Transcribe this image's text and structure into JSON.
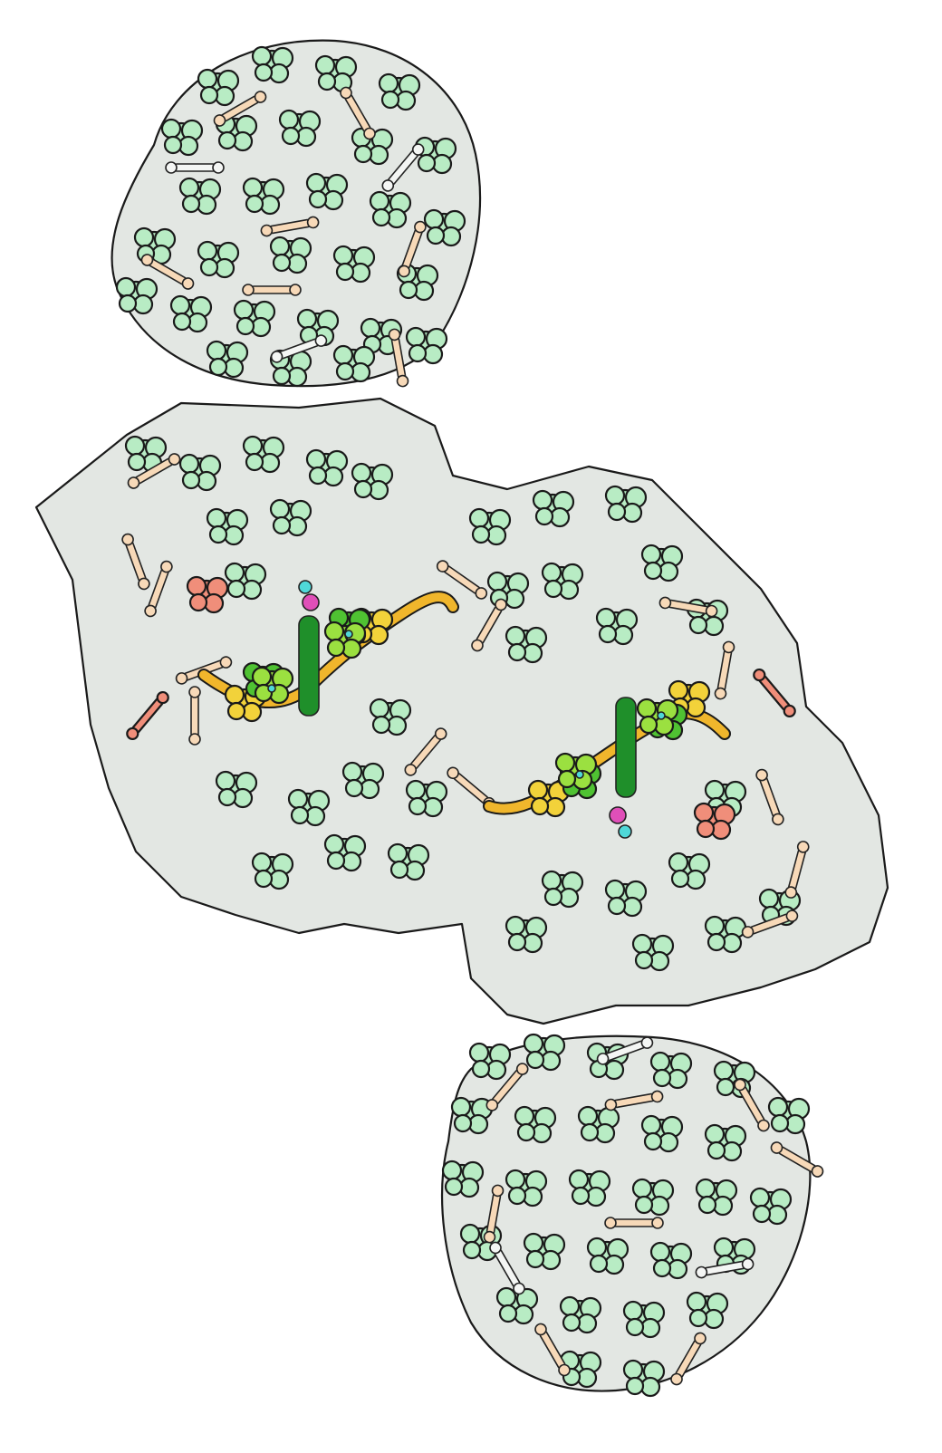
{
  "image": {
    "kind": "molecular-illustration",
    "background": "#ffffff",
    "text": []
  },
  "palette": {
    "protein_shadow": "#e3e7e3",
    "protein_mint": "#b8ecc4",
    "protein_mint_dark": "#8fd6a3",
    "lipid_tan": "#f7d9b8",
    "pigment_white": "#f4f6f4",
    "cofactor_salmon": "#f08e7a",
    "chlorophyll_green": "#4fc232",
    "chlorophyll_dark": "#1f8f2a",
    "chlorophyll_lime": "#9be040",
    "carotenoid_yellow": "#f2d23a",
    "carotenoid_orange": "#f0b62c",
    "ion_cyan": "#4fd8d8",
    "ion_magenta": "#e04fb8",
    "ion_orange": "#f0a040"
  },
  "icons": [
    "top-protein-complex",
    "central-membrane-complex",
    "bottom-protein-complex",
    "chlorophyll-chain",
    "carotenoid-chain",
    "cofactor-cluster"
  ]
}
